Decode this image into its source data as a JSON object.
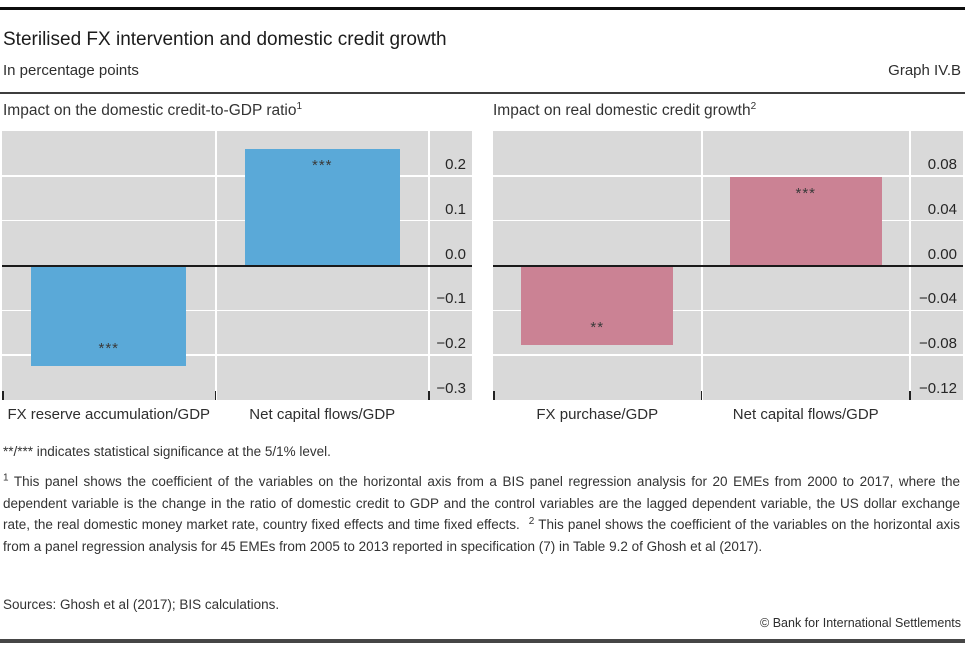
{
  "header": {
    "title": "Sterilised FX intervention and domestic credit growth",
    "subtitle": "In percentage points",
    "graph_label": "Graph IV.B"
  },
  "chart_data": [
    {
      "type": "bar",
      "title": "Impact on the domestic credit-to-GDP ratio",
      "title_sup": "1",
      "categories": [
        "FX reserve accumulation/GDP",
        "Net capital flows/GDP"
      ],
      "values": [
        -0.225,
        0.26
      ],
      "significance": [
        "***",
        "***"
      ],
      "bar_color": "#5aa9d8",
      "ylim": [
        -0.3,
        0.3
      ],
      "ytick_values": [
        0.2,
        0.1,
        0.0,
        -0.1,
        -0.2,
        -0.3
      ],
      "ytick_labels": [
        "0.2",
        "0.1",
        "0.0",
        "−0.1",
        "−0.2",
        "−0.3"
      ],
      "grid": true,
      "legend": "none"
    },
    {
      "type": "bar",
      "title": "Impact on real domestic credit growth",
      "title_sup": "2",
      "categories": [
        "FX purchase/GDP",
        "Net capital flows/GDP"
      ],
      "values": [
        -0.071,
        0.079
      ],
      "significance": [
        "**",
        "***"
      ],
      "bar_color": "#cb8294",
      "ylim": [
        -0.12,
        0.12
      ],
      "ytick_values": [
        0.08,
        0.04,
        0.0,
        -0.04,
        -0.08,
        -0.12
      ],
      "ytick_labels": [
        "0.08",
        "0.04",
        "0.00",
        "−0.04",
        "−0.08",
        "−0.12"
      ],
      "grid": true,
      "legend": "none"
    }
  ],
  "notes": {
    "significance_note": "**/*** indicates statistical significance at the 5/1% level.",
    "footnote1_marker": "1",
    "footnote1_text": "  This panel shows the coefficient of the variables on the horizontal axis from a BIS panel regression analysis for 20 EMEs from 2000 to 2017, where the dependent variable is the change in the ratio of domestic credit to GDP and the control variables are the lagged dependent variable, the US dollar exchange rate, the real domestic money market rate, country fixed effects and time fixed effects.",
    "footnote2_marker": "2",
    "footnote2_text": "  This panel shows the coefficient of the variables on the horizontal axis from a panel regression analysis for 45 EMEs from 2005 to 2013 reported in specification (7) in Table 9.2 of Ghosh et al (2017).",
    "sources": "Sources: Ghosh et al (2017); BIS calculations.",
    "copyright": "© Bank for International Settlements"
  },
  "style": {
    "plot_background": "#d9d9d9",
    "grid_color": "#ffffff",
    "zero_line_color": "#1a1a1a",
    "left_bar_color": "#5aa9d8",
    "right_bar_color": "#cb8294",
    "text_color": "#333333"
  }
}
